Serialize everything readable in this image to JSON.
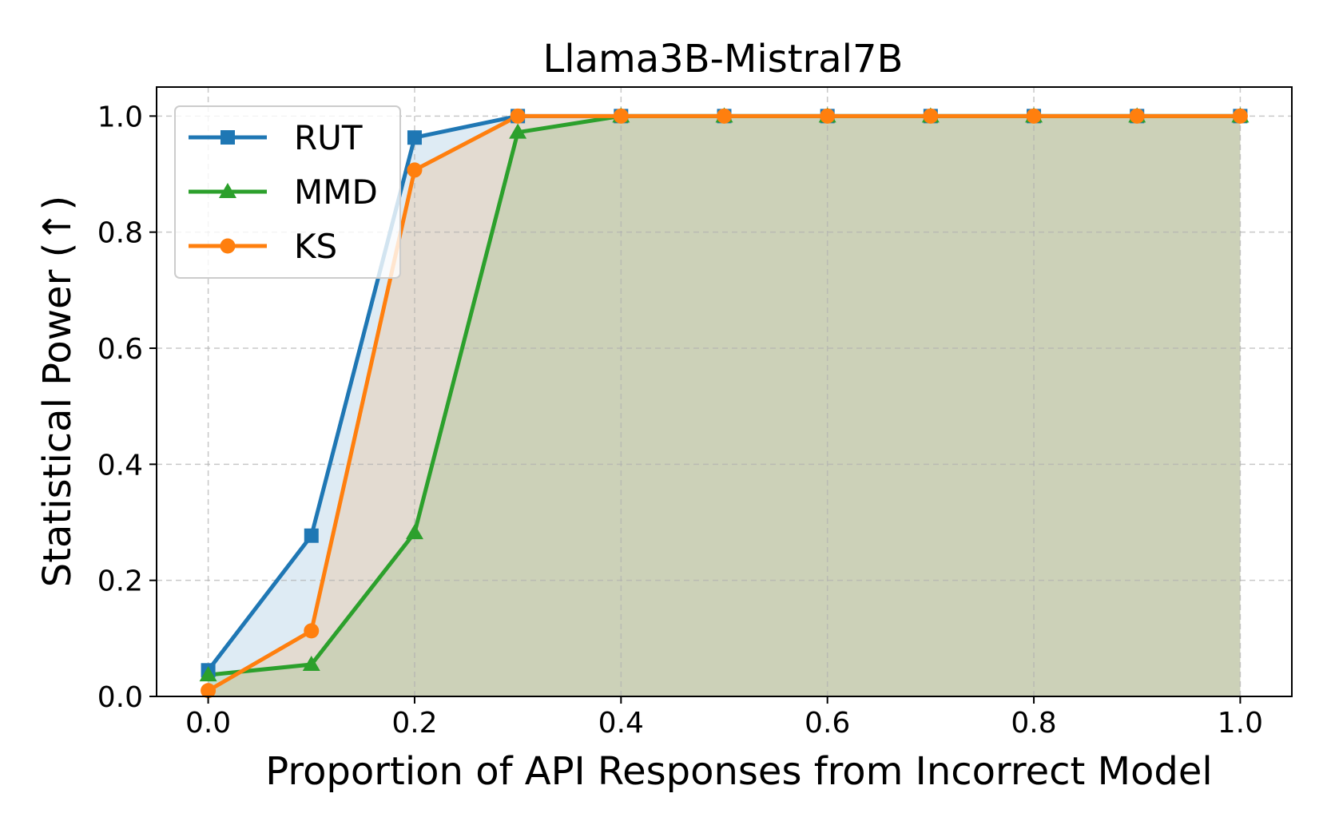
{
  "chart_data": {
    "type": "line",
    "title": "Llama3B-Mistral7B",
    "xlabel": "Proportion of API Responses from Incorrect Model",
    "ylabel": "Statistical Power (↑)",
    "xlim": [
      -0.05,
      1.05
    ],
    "ylim": [
      0.0,
      1.05
    ],
    "xticks": [
      0.0,
      0.2,
      0.4,
      0.6,
      0.8,
      1.0
    ],
    "yticks": [
      0.0,
      0.2,
      0.4,
      0.6,
      0.8,
      1.0
    ],
    "xtick_labels": [
      "0.0",
      "0.2",
      "0.4",
      "0.6",
      "0.8",
      "1.0"
    ],
    "ytick_labels": [
      "0.0",
      "0.2",
      "0.4",
      "0.6",
      "0.8",
      "1.0"
    ],
    "grid": true,
    "legend_position": "top-left",
    "x": [
      0.0,
      0.1,
      0.2,
      0.3,
      0.4,
      0.5,
      0.6,
      0.7,
      0.8,
      0.9,
      1.0
    ],
    "series": [
      {
        "name": "RUT",
        "color": "#1f77b4",
        "marker": "square",
        "values": [
          0.045,
          0.277,
          0.963,
          1.0,
          1.0,
          1.0,
          1.0,
          1.0,
          1.0,
          1.0,
          1.0
        ]
      },
      {
        "name": "MMD",
        "color": "#2ca02c",
        "marker": "triangle",
        "values": [
          0.037,
          0.055,
          0.282,
          0.972,
          1.0,
          1.0,
          1.0,
          1.0,
          1.0,
          1.0,
          1.0
        ]
      },
      {
        "name": "KS",
        "color": "#ff7f0e",
        "marker": "circle",
        "values": [
          0.01,
          0.113,
          0.907,
          1.0,
          1.0,
          1.0,
          1.0,
          1.0,
          1.0,
          1.0,
          1.0
        ]
      }
    ]
  }
}
